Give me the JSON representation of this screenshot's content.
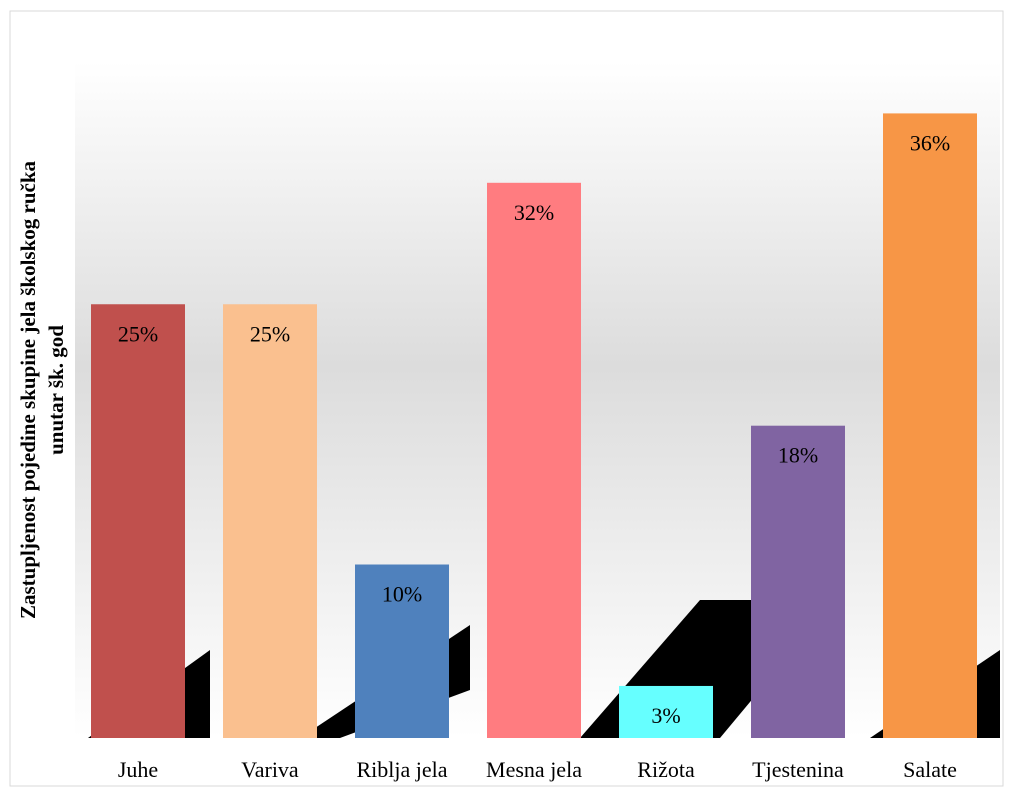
{
  "chart_data": {
    "type": "bar",
    "y_label": [
      "Zastupljenost pojedine skupine jela školskog ručka",
      "unutar šk. god"
    ],
    "categories": [
      "Juhe",
      "Variva",
      "Riblja jela",
      "Mesna jela",
      "Rižota",
      "Tjestenina",
      "Salate"
    ],
    "values": [
      25,
      25,
      10,
      32,
      3,
      18,
      36
    ],
    "value_labels": [
      "25%",
      "25%",
      "10%",
      "32%",
      "3%",
      "18%",
      "36%"
    ],
    "colors": [
      "#c0504d",
      "#fac08f",
      "#4f81bd",
      "#ff7c80",
      "#66ffff",
      "#8064a2",
      "#f79646"
    ],
    "ylim": [
      0,
      40
    ]
  }
}
